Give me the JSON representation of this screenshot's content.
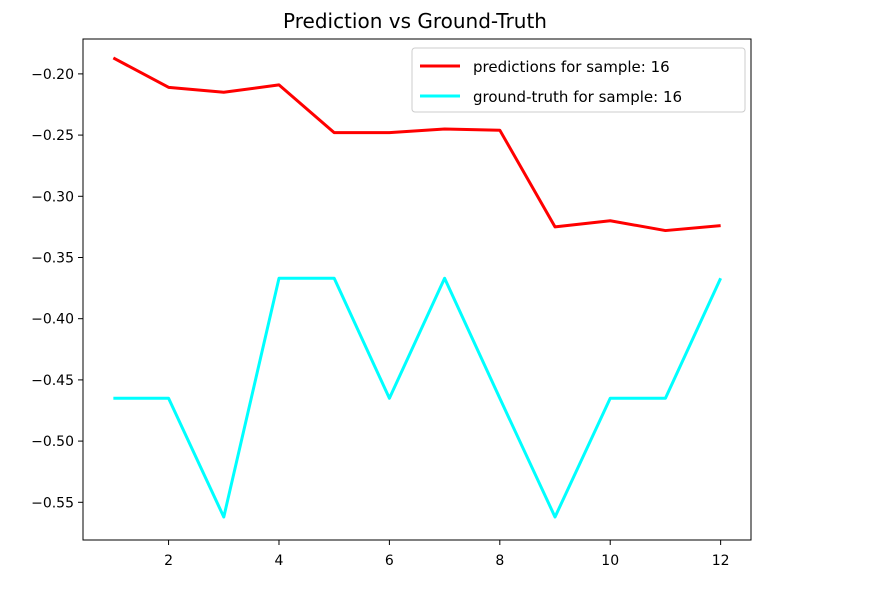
{
  "chart_data": {
    "type": "line",
    "title": "Prediction vs Ground-Truth",
    "xlabel": "",
    "ylabel": "",
    "xlim": [
      0.45,
      12.55
    ],
    "ylim": [
      -0.5808,
      -0.1715
    ],
    "xticks": [
      2,
      4,
      6,
      8,
      10,
      12
    ],
    "yticks": [
      -0.2,
      -0.25,
      -0.3,
      -0.35,
      -0.4,
      -0.45,
      -0.5,
      -0.55
    ],
    "xtick_labels": [
      "2",
      "4",
      "6",
      "8",
      "10",
      "12"
    ],
    "ytick_labels": [
      "−0.20",
      "−0.25",
      "−0.30",
      "−0.35",
      "−0.40",
      "−0.45",
      "−0.50",
      "−0.55"
    ],
    "grid": false,
    "legend_position": "upper right",
    "x": [
      1,
      2,
      3,
      4,
      5,
      6,
      7,
      8,
      9,
      10,
      11,
      12
    ],
    "series": [
      {
        "name": "predictions for sample: 16",
        "color": "#ff0000",
        "values": [
          -0.187,
          -0.211,
          -0.215,
          -0.209,
          -0.248,
          -0.248,
          -0.245,
          -0.246,
          -0.325,
          -0.32,
          -0.328,
          -0.324
        ]
      },
      {
        "name": "ground-truth for sample: 16",
        "color": "#00ffff",
        "values": [
          -0.465,
          -0.465,
          -0.562,
          -0.367,
          -0.367,
          -0.465,
          -0.367,
          -0.465,
          -0.562,
          -0.465,
          -0.465,
          -0.367
        ]
      }
    ]
  }
}
